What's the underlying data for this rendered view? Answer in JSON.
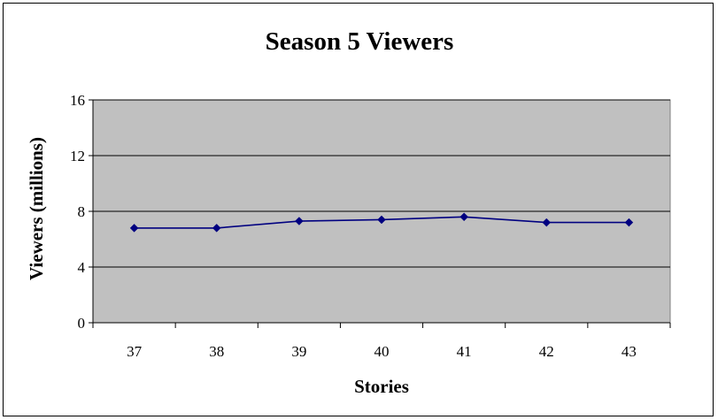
{
  "chart_data": {
    "type": "line",
    "title": "Season 5 Viewers",
    "xlabel": "Stories",
    "ylabel": "Viewers (millions)",
    "categories": [
      "37",
      "38",
      "39",
      "40",
      "41",
      "42",
      "43"
    ],
    "series": [
      {
        "values": [
          6.8,
          6.8,
          7.3,
          7.4,
          7.6,
          7.2,
          7.2
        ]
      }
    ],
    "ylim": [
      0,
      16
    ],
    "yticks": [
      0,
      4,
      8,
      12,
      16
    ],
    "grid": true,
    "legend": "none",
    "colors": {
      "plot_background": "#c0c0c0",
      "series_line": "#000080",
      "grid": "#000000"
    }
  }
}
